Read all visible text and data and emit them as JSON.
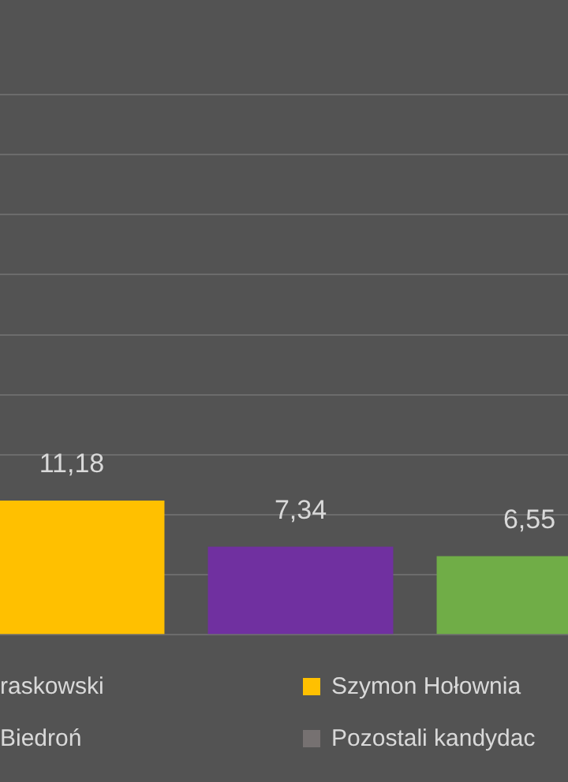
{
  "chart_data": {
    "type": "bar",
    "categories": [
      null,
      null,
      null
    ],
    "values": [
      11.18,
      7.34,
      6.55
    ],
    "colors": [
      "#ffc000",
      "#7030a0",
      "#70ad47"
    ],
    "value_labels": [
      "11,18",
      "7,34",
      "6,55"
    ],
    "ylim": [
      0,
      45
    ],
    "yticks": [
      {
        "value": 0,
        "label": null
      },
      {
        "value": 5,
        "label": null
      },
      {
        "value": 10,
        "label": null
      },
      {
        "value": 15,
        "label": null
      },
      {
        "value": 20,
        "label": null
      },
      {
        "value": 25,
        "label": null
      },
      {
        "value": 30,
        "label": null
      },
      {
        "value": 35,
        "label": null
      },
      {
        "value": 40,
        "label": null
      }
    ],
    "grid": "y",
    "annotations": [
      "raskowski",
      "Szymon Hołownia",
      "Biedroń",
      "Pozostali kandydac"
    ]
  }
}
